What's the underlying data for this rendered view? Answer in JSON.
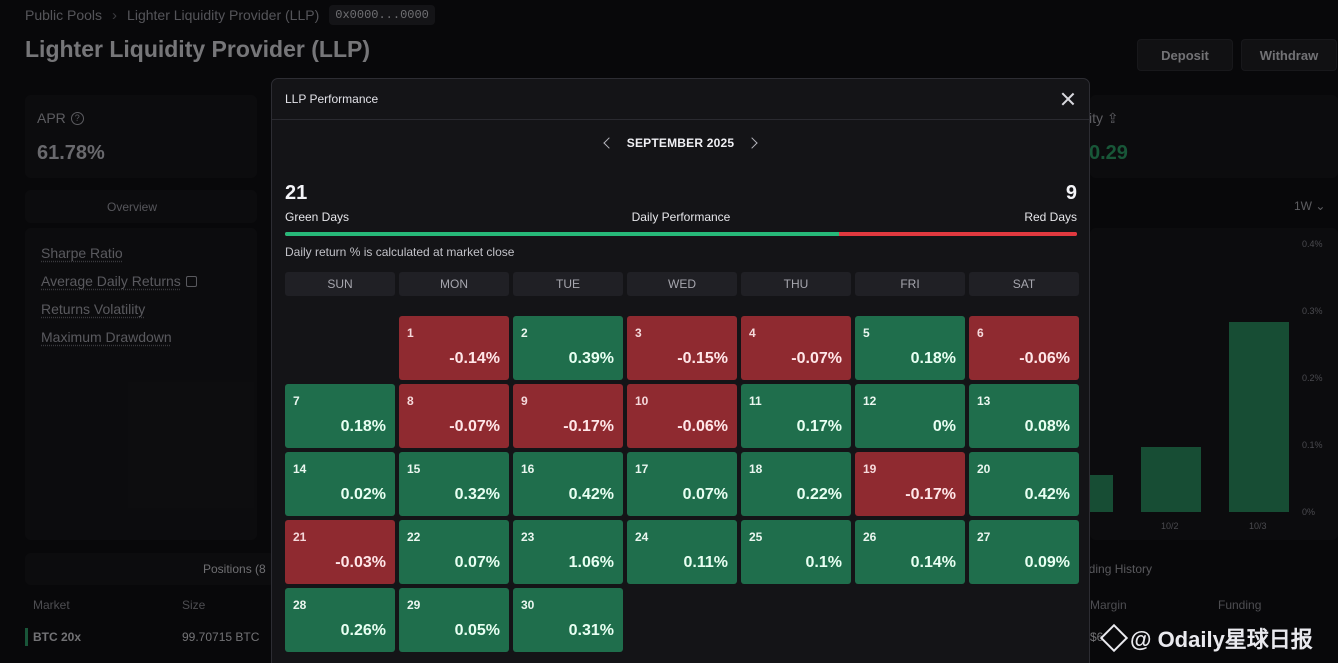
{
  "background": {
    "breadcrumb": {
      "root": "Public Pools",
      "current": "Lighter Liquidity Provider (LLP)",
      "address": "0x0000...0000"
    },
    "title": "Lighter Liquidity Provider (LLP)",
    "deposit_label": "Deposit",
    "withdraw_label": "Withdraw",
    "apr_label": "APR",
    "apr_value": "61.78%",
    "overview_tab": "Overview",
    "metrics": [
      "Sharpe Ratio",
      "Average Daily Returns",
      "Returns Volatility",
      "Maximum Drawdown"
    ],
    "positions_tab": "Positions (8",
    "columns": {
      "market": "Market",
      "size": "Size",
      "margin": "Margin",
      "funding": "Funding"
    },
    "btc_row": {
      "market": "BTC 20x",
      "size": "99.70715 BTC",
      "margin": "$6"
    },
    "right_label": "ity",
    "right_value": "0.29",
    "period_select": "1W",
    "y_ticks": [
      "0.4%",
      "0.3%",
      "0.2%",
      "0.1%",
      "0%"
    ],
    "bars": [
      {
        "label": "",
        "value": 0.055
      },
      {
        "label": "10/2",
        "value": 0.097
      },
      {
        "label": "10/3",
        "value": 0.284
      }
    ],
    "funding_tab": "nding History",
    "watermark": "@ Odaily星球日报"
  },
  "modal": {
    "title": "LLP Performance",
    "month": "SEPTEMBER 2025",
    "green_days": "21",
    "red_days": "9",
    "green_label": "Green Days",
    "red_label": "Red Days",
    "daily_label": "Daily Performance",
    "green_ratio": 0.7,
    "note": "Daily return % is calculated at market close",
    "weekdays": [
      "SUN",
      "MON",
      "TUE",
      "WED",
      "THU",
      "FRI",
      "SAT"
    ],
    "start_offset": 1,
    "colors": {
      "green": "#1f6e4c",
      "red": "#8f2a30",
      "bar_green": "#27b879",
      "bar_red": "#e0393f"
    },
    "days": [
      {
        "d": "1",
        "v": "-0.14%"
      },
      {
        "d": "2",
        "v": "0.39%"
      },
      {
        "d": "3",
        "v": "-0.15%"
      },
      {
        "d": "4",
        "v": "-0.07%"
      },
      {
        "d": "5",
        "v": "0.18%"
      },
      {
        "d": "6",
        "v": "-0.06%"
      },
      {
        "d": "7",
        "v": "0.18%"
      },
      {
        "d": "8",
        "v": "-0.07%"
      },
      {
        "d": "9",
        "v": "-0.17%"
      },
      {
        "d": "10",
        "v": "-0.06%"
      },
      {
        "d": "11",
        "v": "0.17%"
      },
      {
        "d": "12",
        "v": "0%"
      },
      {
        "d": "13",
        "v": "0.08%"
      },
      {
        "d": "14",
        "v": "0.02%"
      },
      {
        "d": "15",
        "v": "0.32%"
      },
      {
        "d": "16",
        "v": "0.42%"
      },
      {
        "d": "17",
        "v": "0.07%"
      },
      {
        "d": "18",
        "v": "0.22%"
      },
      {
        "d": "19",
        "v": "-0.17%"
      },
      {
        "d": "20",
        "v": "0.42%"
      },
      {
        "d": "21",
        "v": "-0.03%"
      },
      {
        "d": "22",
        "v": "0.07%"
      },
      {
        "d": "23",
        "v": "1.06%"
      },
      {
        "d": "24",
        "v": "0.11%"
      },
      {
        "d": "25",
        "v": "0.1%"
      },
      {
        "d": "26",
        "v": "0.14%"
      },
      {
        "d": "27",
        "v": "0.09%"
      },
      {
        "d": "28",
        "v": "0.26%"
      },
      {
        "d": "29",
        "v": "0.05%"
      },
      {
        "d": "30",
        "v": "0.31%"
      }
    ]
  }
}
